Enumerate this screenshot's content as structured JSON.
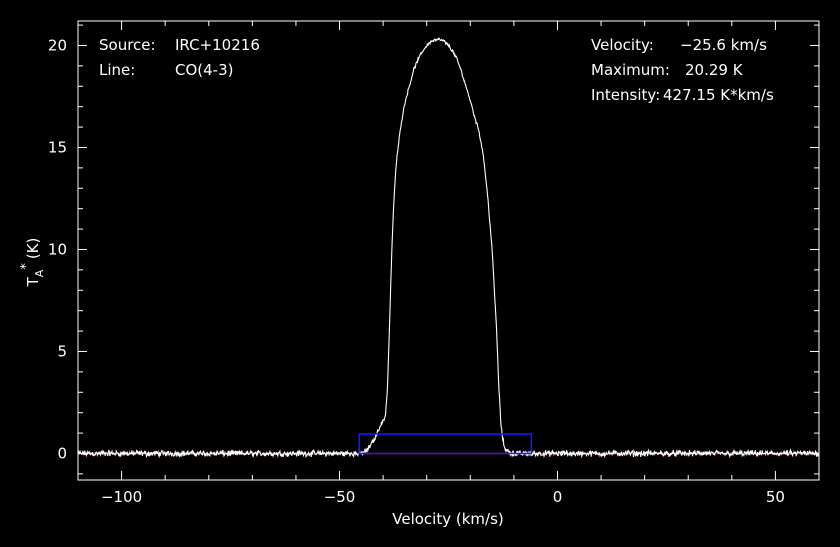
{
  "annotations": {
    "source_label": "Source:",
    "source_value": "IRC+10216",
    "line_label": "Line:",
    "line_value": "CO(4-3)",
    "velocity_label": "Velocity:",
    "velocity_value": "−25.6 km/s",
    "maximum_label": "Maximum:",
    "maximum_value": "20.29 K",
    "intensity_label": "Intensity:",
    "intensity_value": "427.15 K*km/s"
  },
  "chart_data": {
    "type": "line",
    "title": "",
    "xlabel": "Velocity (km/s)",
    "ylabel_main": "T",
    "ylabel_sub": "A",
    "ylabel_sup": "*",
    "ylabel_unit": "(K)",
    "xlim": [
      -110,
      60
    ],
    "ylim": [
      -1.3,
      21.2
    ],
    "xticks": [
      -100,
      -50,
      0,
      50
    ],
    "xtick_labels": [
      "−100",
      "−50",
      "0",
      "50"
    ],
    "yticks": [
      0,
      5,
      10,
      15,
      20
    ],
    "ytick_labels": [
      "0",
      "5",
      "10",
      "15",
      "20"
    ],
    "grid": false,
    "colors": {
      "background": "#000000",
      "axes": "#ffffff",
      "spectrum": "#ffffff",
      "baseline": "#cc2222",
      "window_box": "#1a1aff"
    },
    "baseline_y": 0,
    "window_box": {
      "x": [
        -45.5,
        -6
      ],
      "y": [
        0,
        0.95
      ]
    },
    "series": [
      {
        "x": [
          -110,
          -47,
          -45,
          -43.5,
          -42,
          -41,
          -40.5,
          -40,
          -39.5,
          -39,
          -38.5,
          -38,
          -37.5,
          -37,
          -36,
          -35,
          -34,
          -33,
          -32,
          -31,
          -30,
          -29,
          -28,
          -27,
          -26,
          -25,
          -24,
          -23,
          -22,
          -21,
          -20,
          -19,
          -18,
          -17,
          -16,
          -15,
          -14,
          -13.5,
          -13,
          -12.5,
          -12,
          -11,
          -10,
          -8,
          -5,
          60
        ],
        "y": [
          0,
          0,
          0,
          0.2,
          0.7,
          1.2,
          1.4,
          1.6,
          1.8,
          3.2,
          6.5,
          10.0,
          12.5,
          14.2,
          16.0,
          17.2,
          18.0,
          18.8,
          19.3,
          19.7,
          20.0,
          20.2,
          20.28,
          20.29,
          20.2,
          20.0,
          19.7,
          19.3,
          18.7,
          18.0,
          17.3,
          16.5,
          15.8,
          14.6,
          12.6,
          10.0,
          6.2,
          3.5,
          1.5,
          0.6,
          0.25,
          0.05,
          0,
          0,
          0,
          0
        ]
      }
    ]
  }
}
